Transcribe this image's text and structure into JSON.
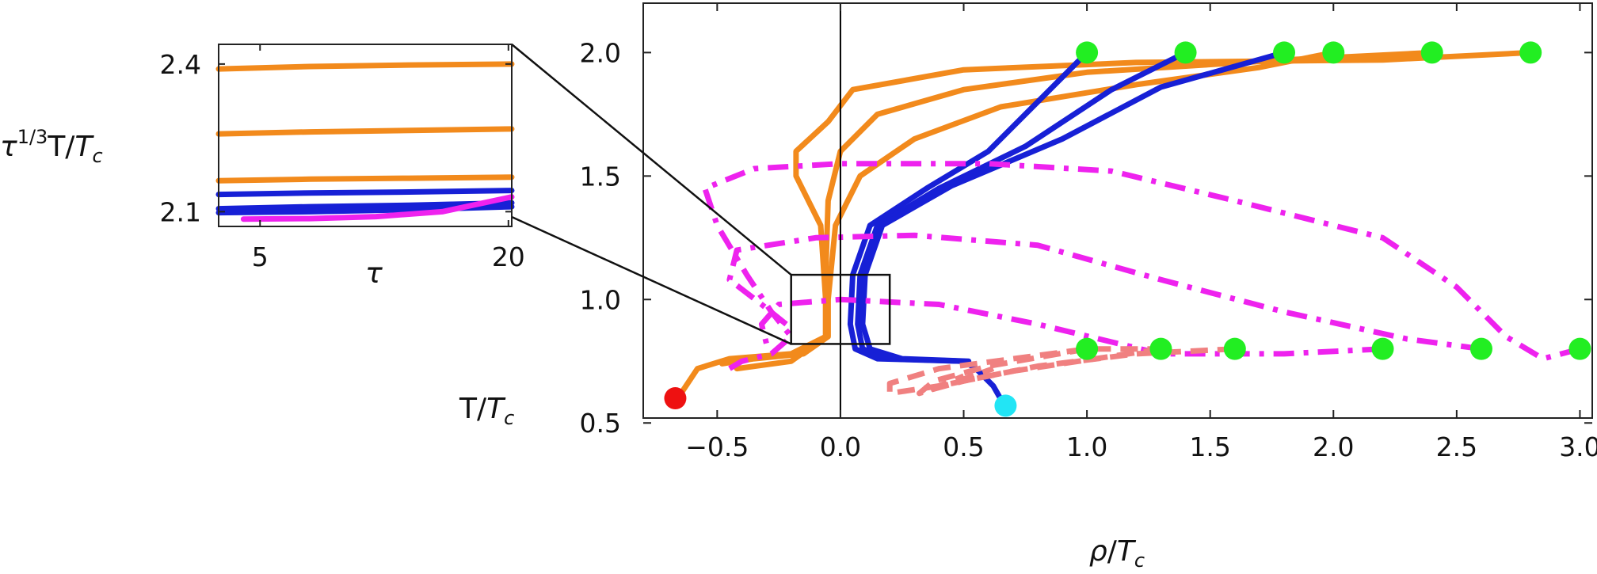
{
  "chart_data": [
    {
      "type": "line",
      "ylabel": "T/T_c",
      "xlabel": "ρ/T_c",
      "xlim": [
        -0.8,
        3.05
      ],
      "ylim": [
        0.52,
        2.2
      ],
      "xticks": [
        "-0.5",
        "0.0",
        "0.5",
        "1.0",
        "1.5",
        "2.0",
        "2.5",
        "3.0"
      ],
      "yticks": [
        "0.5",
        "1.0",
        "1.5",
        "2.0"
      ],
      "grid": false,
      "colors": {
        "orange": "#f28a1c",
        "blue": "#1720d6",
        "magenta": "#ee22ee",
        "salmon": "#f08080",
        "green": "#22ee22",
        "red": "#ee1111",
        "cyan": "#22e5f5"
      },
      "series": [
        {
          "color": "orange",
          "style": "solid",
          "points": [
            [
              2.8,
              2.0
            ],
            [
              2.2,
              1.97
            ],
            [
              1.2,
              1.96
            ],
            [
              0.5,
              1.93
            ],
            [
              0.05,
              1.85
            ],
            [
              -0.05,
              1.72
            ],
            [
              -0.18,
              1.6
            ],
            [
              -0.18,
              1.5
            ],
            [
              -0.08,
              1.3
            ],
            [
              -0.06,
              1.0
            ],
            [
              -0.06,
              0.85
            ],
            [
              -0.2,
              0.78
            ],
            [
              -0.45,
              0.76
            ],
            [
              -0.58,
              0.72
            ],
            [
              -0.66,
              0.6
            ]
          ]
        },
        {
          "color": "orange",
          "style": "solid",
          "points": [
            [
              2.4,
              2.0
            ],
            [
              1.8,
              1.97
            ],
            [
              1.0,
              1.92
            ],
            [
              0.5,
              1.85
            ],
            [
              0.15,
              1.75
            ],
            [
              0.0,
              1.6
            ],
            [
              -0.05,
              1.4
            ],
            [
              -0.06,
              1.1
            ],
            [
              -0.06,
              0.85
            ],
            [
              -0.2,
              0.75
            ],
            [
              -0.42,
              0.72
            ]
          ]
        },
        {
          "color": "orange",
          "style": "solid",
          "points": [
            [
              2.0,
              2.0
            ],
            [
              1.7,
              1.94
            ],
            [
              1.2,
              1.87
            ],
            [
              0.65,
              1.78
            ],
            [
              0.3,
              1.65
            ],
            [
              0.08,
              1.5
            ],
            [
              -0.02,
              1.3
            ],
            [
              -0.05,
              1.0
            ],
            [
              -0.05,
              0.85
            ],
            [
              -0.15,
              0.78
            ],
            [
              -0.35,
              0.76
            ],
            [
              -0.48,
              0.74
            ]
          ]
        },
        {
          "color": "blue",
          "style": "solid",
          "points": [
            [
              1.0,
              2.0
            ],
            [
              0.85,
              1.85
            ],
            [
              0.6,
              1.6
            ],
            [
              0.35,
              1.45
            ],
            [
              0.12,
              1.3
            ],
            [
              0.05,
              1.1
            ],
            [
              0.04,
              0.9
            ],
            [
              0.06,
              0.8
            ],
            [
              0.15,
              0.76
            ],
            [
              0.5,
              0.75
            ],
            [
              0.55,
              0.72
            ],
            [
              0.62,
              0.65
            ],
            [
              0.66,
              0.58
            ]
          ]
        },
        {
          "color": "blue",
          "style": "solid",
          "points": [
            [
              1.4,
              2.0
            ],
            [
              1.1,
              1.85
            ],
            [
              0.75,
              1.62
            ],
            [
              0.4,
              1.45
            ],
            [
              0.15,
              1.3
            ],
            [
              0.08,
              1.1
            ],
            [
              0.07,
              0.9
            ],
            [
              0.09,
              0.8
            ],
            [
              0.2,
              0.76
            ],
            [
              0.5,
              0.75
            ]
          ]
        },
        {
          "color": "blue",
          "style": "solid",
          "points": [
            [
              1.8,
              2.0
            ],
            [
              1.3,
              1.86
            ],
            [
              0.9,
              1.65
            ],
            [
              0.45,
              1.46
            ],
            [
              0.17,
              1.3
            ],
            [
              0.1,
              1.1
            ],
            [
              0.09,
              0.9
            ],
            [
              0.12,
              0.8
            ],
            [
              0.25,
              0.76
            ],
            [
              0.52,
              0.75
            ]
          ]
        },
        {
          "color": "magenta",
          "style": "dashdot",
          "points": [
            [
              3.0,
              0.8
            ],
            [
              2.85,
              0.76
            ],
            [
              2.7,
              0.85
            ],
            [
              2.5,
              1.05
            ],
            [
              2.2,
              1.25
            ],
            [
              1.6,
              1.4
            ],
            [
              1.1,
              1.52
            ],
            [
              0.6,
              1.55
            ],
            [
              0.0,
              1.55
            ],
            [
              -0.35,
              1.53
            ],
            [
              -0.55,
              1.45
            ],
            [
              -0.5,
              1.3
            ],
            [
              -0.38,
              1.1
            ],
            [
              -0.28,
              0.95
            ],
            [
              -0.2,
              0.85
            ],
            [
              -0.28,
              0.78
            ],
            [
              -0.4,
              0.75
            ],
            [
              -0.45,
              0.72
            ]
          ]
        },
        {
          "color": "magenta",
          "style": "dashdot",
          "points": [
            [
              2.6,
              0.8
            ],
            [
              2.3,
              0.84
            ],
            [
              1.8,
              0.95
            ],
            [
              1.3,
              1.08
            ],
            [
              0.8,
              1.22
            ],
            [
              0.3,
              1.26
            ],
            [
              -0.1,
              1.25
            ],
            [
              -0.42,
              1.2
            ],
            [
              -0.45,
              1.08
            ],
            [
              -0.32,
              0.98
            ],
            [
              -0.22,
              0.9
            ]
          ]
        },
        {
          "color": "magenta",
          "style": "dashdot",
          "points": [
            [
              2.2,
              0.8
            ],
            [
              1.8,
              0.78
            ],
            [
              1.3,
              0.78
            ],
            [
              0.8,
              0.9
            ],
            [
              0.4,
              0.98
            ],
            [
              0.0,
              1.0
            ],
            [
              -0.25,
              0.98
            ],
            [
              -0.32,
              0.9
            ],
            [
              -0.3,
              0.82
            ]
          ]
        },
        {
          "color": "salmon",
          "style": "dashed",
          "points": [
            [
              1.6,
              0.8
            ],
            [
              1.2,
              0.78
            ],
            [
              0.8,
              0.73
            ],
            [
              0.4,
              0.65
            ],
            [
              0.2,
              0.62
            ],
            [
              0.2,
              0.66
            ],
            [
              0.4,
              0.72
            ],
            [
              1.0,
              0.8
            ],
            [
              1.3,
              0.8
            ]
          ]
        },
        {
          "color": "salmon",
          "style": "dashed",
          "points": [
            [
              1.0,
              0.8
            ],
            [
              0.6,
              0.73
            ],
            [
              0.38,
              0.67
            ],
            [
              0.32,
              0.62
            ],
            [
              0.45,
              0.66
            ],
            [
              0.62,
              0.72
            ]
          ]
        },
        {
          "color": "salmon",
          "style": "dashed",
          "points": [
            [
              1.3,
              0.8
            ],
            [
              0.7,
              0.71
            ],
            [
              0.5,
              0.67
            ],
            [
              0.35,
              0.63
            ],
            [
              0.5,
              0.69
            ]
          ]
        }
      ],
      "markers": [
        {
          "color": "green",
          "points": [
            [
              1.0,
              2.0
            ],
            [
              1.4,
              2.0
            ],
            [
              1.8,
              2.0
            ],
            [
              2.0,
              2.0
            ],
            [
              2.4,
              2.0
            ],
            [
              2.8,
              2.0
            ],
            [
              1.0,
              0.8
            ],
            [
              1.3,
              0.8
            ],
            [
              1.6,
              0.8
            ],
            [
              2.2,
              0.8
            ],
            [
              2.6,
              0.8
            ],
            [
              3.0,
              0.8
            ]
          ]
        },
        {
          "color": "red",
          "points": [
            [
              -0.67,
              0.6
            ]
          ]
        },
        {
          "color": "cyan",
          "points": [
            [
              0.67,
              0.57
            ]
          ]
        }
      ],
      "vline_x": 0.0,
      "zoom_box": {
        "x": [
          -0.2,
          0.2
        ],
        "y": [
          0.82,
          1.1
        ]
      }
    },
    {
      "type": "line",
      "ylabel": "τ^{1/3}T/T_c",
      "xlabel": "τ",
      "xlim": [
        2.5,
        20.2
      ],
      "ylim": [
        2.07,
        2.44
      ],
      "xticks": [
        "5",
        "20"
      ],
      "yticks": [
        "2.1",
        "2.4"
      ],
      "series": [
        {
          "color": "orange",
          "style": "solid",
          "points": [
            [
              2.5,
              2.39
            ],
            [
              8,
              2.395
            ],
            [
              14,
              2.398
            ],
            [
              20.2,
              2.4
            ]
          ]
        },
        {
          "color": "orange",
          "style": "solid",
          "points": [
            [
              2.5,
              2.258
            ],
            [
              8,
              2.262
            ],
            [
              14,
              2.265
            ],
            [
              20.2,
              2.268
            ]
          ]
        },
        {
          "color": "orange",
          "style": "solid",
          "points": [
            [
              2.5,
              2.163
            ],
            [
              8,
              2.166
            ],
            [
              14,
              2.168
            ],
            [
              20.2,
              2.17
            ]
          ]
        },
        {
          "color": "blue",
          "style": "solid",
          "points": [
            [
              2.5,
              2.135
            ],
            [
              8,
              2.138
            ],
            [
              14,
              2.14
            ],
            [
              20.2,
              2.143
            ]
          ]
        },
        {
          "color": "blue",
          "style": "solid",
          "points": [
            [
              2.5,
              2.106
            ],
            [
              8,
              2.11
            ],
            [
              14,
              2.113
            ],
            [
              20.2,
              2.118
            ]
          ]
        },
        {
          "color": "blue",
          "style": "solid",
          "points": [
            [
              2.5,
              2.098
            ],
            [
              8,
              2.1
            ],
            [
              14,
              2.104
            ],
            [
              20.2,
              2.11
            ]
          ]
        },
        {
          "color": "magenta",
          "style": "solid",
          "points": [
            [
              4,
              2.085
            ],
            [
              8,
              2.086
            ],
            [
              12,
              2.09
            ],
            [
              16,
              2.1
            ],
            [
              20.2,
              2.13
            ]
          ]
        }
      ]
    }
  ]
}
